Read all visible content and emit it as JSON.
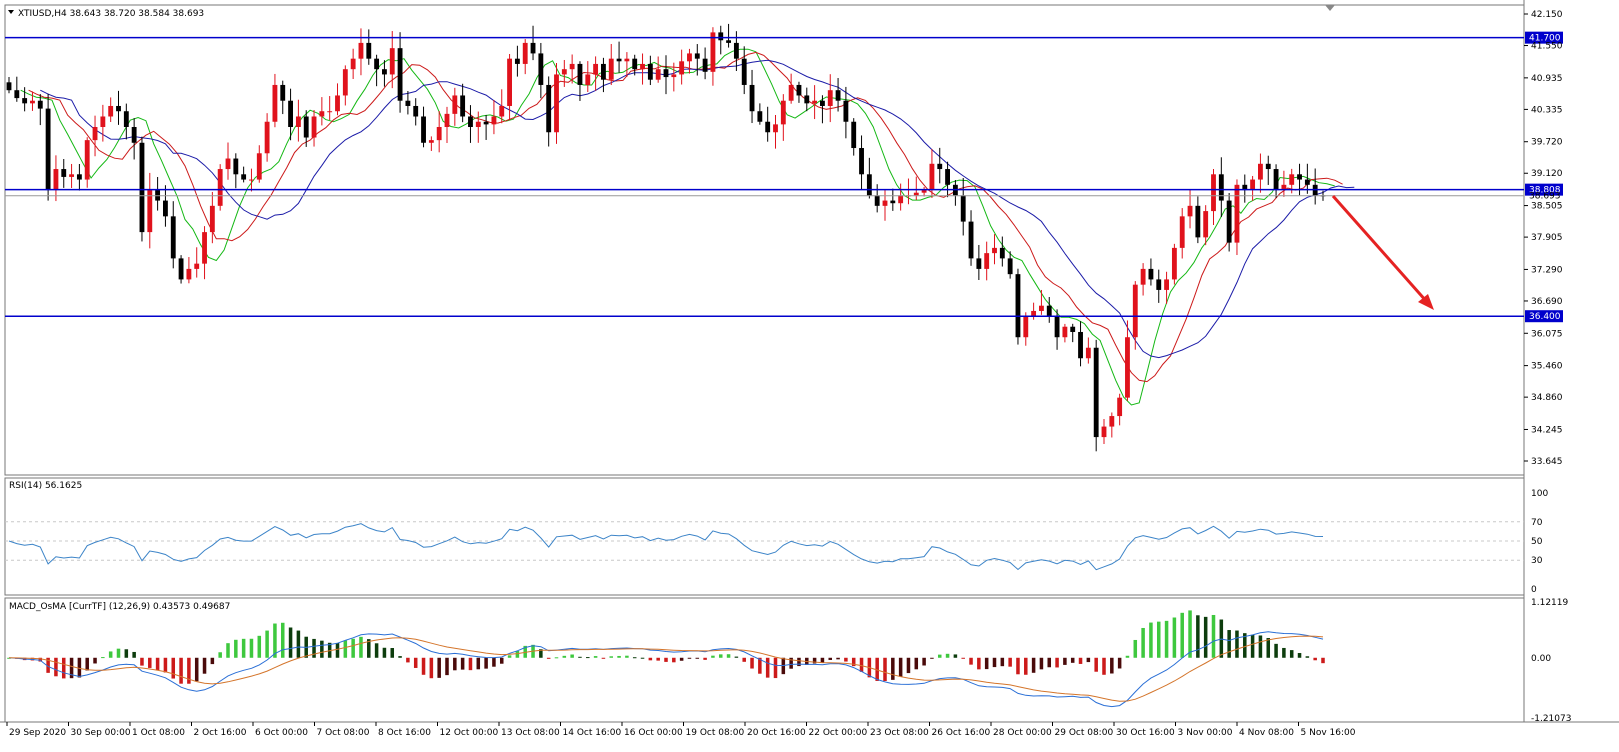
{
  "colors": {
    "bull": "#e0121c",
    "bear": "#000000",
    "ma_fast": "#14b814",
    "ma_mid": "#cc1a1a",
    "ma_slow": "#1c1ca8",
    "level": "#0000cc",
    "rsi": "#3c84c8",
    "macd_pos_up": "#3ec83e",
    "macd_pos_down": "#0d3d0d",
    "macd_neg_down": "#cc1a1a",
    "macd_neg_up": "#4a0a0a",
    "macd_line": "#2a6fd6",
    "signal_line": "#d4752b",
    "arrow": "#e52222",
    "grid": "#c8c8c8"
  },
  "main": {
    "header": "XTIUSD,H4  38.643 38.720 38.584 38.693",
    "ylim": [
      33.645,
      42.15
    ],
    "price_ticks": [
      "42.150",
      "41.550",
      "40.935",
      "40.335",
      "39.720",
      "39.120",
      "38.505",
      "37.905",
      "37.290",
      "36.690",
      "36.075",
      "35.460",
      "34.860",
      "34.245",
      "33.645"
    ],
    "levels": [
      {
        "label": "41.700",
        "value": 41.7
      },
      {
        "label": "38.808",
        "value": 38.808
      },
      {
        "label": "36.400",
        "value": 36.4
      }
    ],
    "current": {
      "label": "38.693",
      "value": 38.693
    },
    "arrow_icon": "down-arrow-icon"
  },
  "rsi": {
    "header": "RSI(14) 56.1625",
    "ylim": [
      0,
      100
    ],
    "ticks": [
      "100",
      "70",
      "50",
      "30",
      "0"
    ],
    "levels": [
      70,
      50,
      30
    ]
  },
  "macd": {
    "header": "MACD_OsMA [CurrTF] (12,26,9) 0.43573 0.49687",
    "ylim": [
      -1.21073,
      1.12119
    ],
    "ticks": [
      "1.12119",
      "0.00",
      "-1.21073"
    ]
  },
  "time_axis": [
    "29 Sep 2020",
    "30 Sep 00:00",
    "1 Oct 08:00",
    "2 Oct 16:00",
    "6 Oct 00:00",
    "7 Oct 08:00",
    "8 Oct 16:00",
    "12 Oct 00:00",
    "13 Oct 08:00",
    "14 Oct 16:00",
    "16 Oct 00:00",
    "19 Oct 08:00",
    "20 Oct 16:00",
    "22 Oct 00:00",
    "23 Oct 08:00",
    "26 Oct 16:00",
    "28 Oct 00:00",
    "29 Oct 08:00",
    "30 Oct 16:00",
    "3 Nov 00:00",
    "4 Nov 08:00",
    "5 Nov 16:00"
  ],
  "chart_data": {
    "type": "candlestick",
    "title": "XTIUSD,H4",
    "ylim": [
      33.645,
      42.15
    ],
    "close": [
      40.7,
      40.55,
      40.45,
      40.5,
      40.35,
      38.8,
      39.2,
      39.05,
      39.1,
      39.0,
      39.75,
      40.0,
      40.2,
      40.4,
      40.3,
      40.0,
      39.7,
      38.0,
      38.8,
      38.6,
      38.3,
      37.5,
      37.1,
      37.3,
      37.4,
      38.0,
      38.5,
      39.2,
      39.4,
      39.1,
      39.0,
      39.0,
      39.5,
      40.1,
      40.8,
      40.5,
      40.0,
      40.2,
      39.8,
      40.2,
      40.3,
      40.3,
      40.6,
      41.1,
      41.3,
      41.6,
      41.3,
      41.1,
      41.0,
      41.5,
      40.5,
      40.4,
      40.2,
      39.7,
      39.75,
      40.0,
      40.25,
      40.6,
      40.2,
      40.0,
      40.1,
      40.05,
      40.2,
      40.4,
      41.3,
      41.2,
      41.6,
      41.4,
      40.8,
      39.9,
      41.0,
      41.1,
      41.2,
      40.8,
      41.0,
      41.2,
      40.9,
      41.3,
      41.25,
      41.3,
      41.1,
      41.2,
      40.9,
      41.1,
      40.95,
      41.0,
      41.25,
      41.4,
      41.3,
      41.05,
      41.8,
      41.65,
      41.6,
      41.3,
      40.8,
      40.3,
      40.1,
      39.9,
      40.05,
      40.5,
      40.8,
      40.6,
      40.45,
      40.5,
      40.4,
      40.7,
      40.5,
      40.1,
      39.6,
      39.1,
      38.7,
      38.5,
      38.6,
      38.55,
      38.7,
      38.7,
      38.75,
      38.8,
      39.3,
      39.2,
      38.9,
      38.7,
      38.2,
      37.5,
      37.3,
      37.6,
      37.7,
      37.5,
      37.2,
      36.0,
      36.4,
      36.5,
      36.6,
      36.4,
      36.0,
      36.2,
      36.1,
      35.6,
      35.8,
      34.1,
      34.3,
      34.5,
      34.85,
      36.0,
      37.0,
      37.3,
      37.1,
      36.9,
      37.1,
      37.7,
      38.3,
      38.5,
      37.9,
      38.4,
      39.1,
      38.6,
      37.8,
      38.9,
      38.8,
      39.0,
      39.3,
      39.2,
      38.8,
      38.9,
      39.1,
      39.0,
      38.9,
      38.7,
      38.693
    ]
  }
}
